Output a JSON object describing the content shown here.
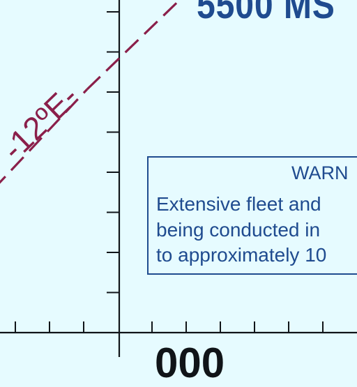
{
  "map": {
    "altitude_label": "5500 MS",
    "isogonic_label": "-12ºE-",
    "warning_title": "WARN",
    "warning_lines": [
      "Extensive fleet and",
      "being conducted in",
      "to approximately 10"
    ],
    "bottom_number": "000"
  },
  "colors": {
    "background": "#e6fbff",
    "airspace_blue": "#1f4b8f",
    "isogonic_maroon": "#8a1f4a",
    "grid_black": "#101418"
  }
}
